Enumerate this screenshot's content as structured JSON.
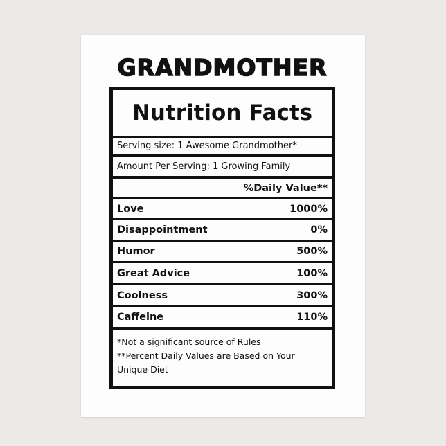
{
  "title": "GRANDMOTHER",
  "label": {
    "heading": "Nutrition Facts",
    "serving_size": "Serving size: 1 Awesome Grandmother*",
    "amount_per_serving": "Amount Per Serving: 1 Growing Family",
    "daily_value_header": "%Daily Value**",
    "nutrients": [
      {
        "name": "Love",
        "value": "1000%"
      },
      {
        "name": "Disappointment",
        "value": "0%"
      },
      {
        "name": "Humor",
        "value": "500%"
      },
      {
        "name": "Great Advice",
        "value": "100%"
      },
      {
        "name": "Coolness",
        "value": "300%"
      },
      {
        "name": "Caffeine",
        "value": "110%"
      }
    ],
    "footnotes": [
      "*Not a significant source of Rules",
      "**Percent Daily Values are Based on Your",
      "Unique Diet"
    ]
  }
}
